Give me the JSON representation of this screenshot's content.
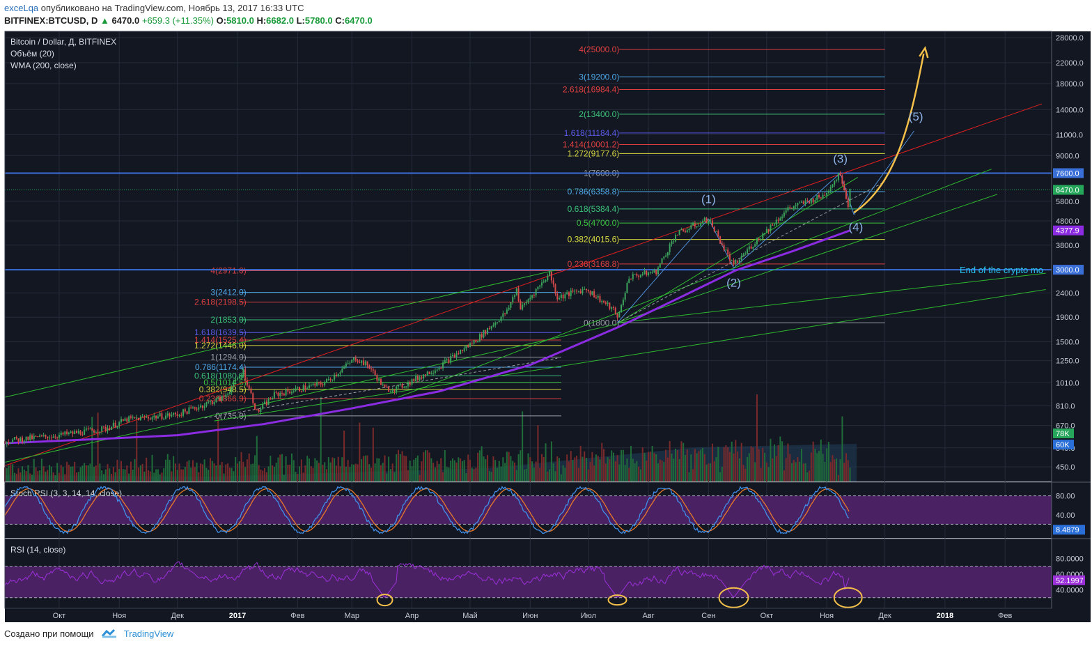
{
  "header": {
    "user": "exceLqa",
    "published": "опубликовано на TradingView.com, Ноябрь 13, 2017 16:33 UTC",
    "symbol": "BITFINEX:BTCUSD, D",
    "price": "6470.0",
    "change": "+659.3 (+11.35%)",
    "o_label": "O:",
    "o": "5810.0",
    "h_label": "H:",
    "h": "6682.0",
    "l_label": "L:",
    "l": "5780.0",
    "c_label": "C:",
    "c": "6470.0"
  },
  "legend": {
    "title": "Bitcoin / Dollar, Д, BITFINEX",
    "volume": "Объём (20)",
    "wma": "WMA (200, close)",
    "stoch": "Stoch RSI (3, 3, 14, 14, close)",
    "rsi": "RSI (14, close)"
  },
  "footer": {
    "made_with": "Создано при помощи",
    "brand": "TradingView"
  },
  "colors": {
    "background": "#131722",
    "grid": "#262b3b",
    "candle_up": "#3ca55c",
    "candle_down": "#d84a4a",
    "wma": "#8b2be2",
    "trend_red": "#e02020",
    "trend_green": "#2eb82e",
    "h_blue": "#3a6fd8",
    "curve_yellow": "#f5c04a",
    "purple_zone": "#4a2163",
    "indicator_line": "#9b30d9",
    "stoch_k": "#3f8fe8",
    "stoch_d": "#e8782a"
  },
  "chart_data": {
    "type": "candlestick",
    "y_scale": "log",
    "ylim": [
      380,
      30000
    ],
    "x_ticks": [
      "Окт",
      "Ноя",
      "Дек",
      "2017",
      "Фев",
      "Мар",
      "Апр",
      "Май",
      "Июн",
      "Июл",
      "Авг",
      "Сен",
      "Окт",
      "Ноя",
      "Дек",
      "2018",
      "Фев"
    ],
    "y_ticks": [
      28000.0,
      22000.0,
      18000.0,
      14000.0,
      11000.0,
      9000.0,
      7600.0,
      6470.0,
      5800.0,
      4800.0,
      4377.9,
      3800.0,
      3000.0,
      2400.0,
      1900.0,
      1500.0,
      1250.0,
      1010.0,
      810.0,
      670.0,
      540.0,
      450.0
    ],
    "price_labels": [
      {
        "text": "7600.0",
        "value": 7600,
        "color": "#3a6fd8"
      },
      {
        "text": "6470.0",
        "value": 6470,
        "color": "#26a65b"
      },
      {
        "text": "4377.9",
        "value": 4377.9,
        "color": "#8b2be2"
      },
      {
        "text": "3000.0",
        "value": 3000,
        "color": "#3a6fd8"
      }
    ],
    "volume_labels": [
      {
        "text": "78K",
        "color": "#26a65b"
      },
      {
        "text": "60K",
        "color": "#2a6fd8"
      }
    ],
    "fib_set_1": [
      {
        "label": "4(2971.0)",
        "value": 2971,
        "color": "#e04040"
      },
      {
        "label": "3(2412.0)",
        "value": 2412,
        "color": "#4ea8e8"
      },
      {
        "label": "2.618(2198.5)",
        "value": 2198.5,
        "color": "#e04040"
      },
      {
        "label": "2(1853.0)",
        "value": 1853,
        "color": "#3cc47c"
      },
      {
        "label": "1.618(1639.5)",
        "value": 1639.5,
        "color": "#5a5ae8"
      },
      {
        "label": "1.414(1525.4)",
        "value": 1525.4,
        "color": "#e04040"
      },
      {
        "label": "1.272(1446.0)",
        "value": 1446,
        "color": "#d8d840"
      },
      {
        "label": "1(1294.0)",
        "value": 1294,
        "color": "#9aa0a6"
      },
      {
        "label": "0.786(1174.4)",
        "value": 1174.4,
        "color": "#4ea8e8"
      },
      {
        "label": "0.618(1080.5)",
        "value": 1080.5,
        "color": "#3cc47c"
      },
      {
        "label": "0.5(1014.5)",
        "value": 1014.5,
        "color": "#3cc440"
      },
      {
        "label": "0.382(948.5)",
        "value": 948.5,
        "color": "#d8d840"
      },
      {
        "label": "0.236(866.9)",
        "value": 866.9,
        "color": "#e04040"
      },
      {
        "label": "0(735.0)",
        "value": 735,
        "color": "#9aa0a6"
      }
    ],
    "fib_set_2": [
      {
        "label": "4(25000.0)",
        "value": 25000,
        "color": "#e04040"
      },
      {
        "label": "3(19200.0)",
        "value": 19200,
        "color": "#4ea8e8"
      },
      {
        "label": "2.618(16984.4)",
        "value": 16984.4,
        "color": "#e04040"
      },
      {
        "label": "2(13400.0)",
        "value": 13400,
        "color": "#3cc47c"
      },
      {
        "label": "1.618(11184.4)",
        "value": 11184.4,
        "color": "#5a5ae8"
      },
      {
        "label": "1.414(10001.2)",
        "value": 10001.2,
        "color": "#e04040"
      },
      {
        "label": "1.272(9177.6)",
        "value": 9177.6,
        "color": "#d8d840"
      },
      {
        "label": "1(7600.0)",
        "value": 7600,
        "color": "#9aa0a6"
      },
      {
        "label": "0.786(6358.8)",
        "value": 6358.8,
        "color": "#4ea8e8"
      },
      {
        "label": "0.618(5384.4)",
        "value": 5384.4,
        "color": "#3cc47c"
      },
      {
        "label": "0.5(4700.0)",
        "value": 4700,
        "color": "#3cc440"
      },
      {
        "label": "0.382(4015.6)",
        "value": 4015.6,
        "color": "#d8d840"
      },
      {
        "label": "0.236(3168.8)",
        "value": 3168.8,
        "color": "#e04040"
      },
      {
        "label": "0(1800.0)",
        "value": 1800,
        "color": "#9aa0a6"
      }
    ],
    "horizontal_lines": [
      {
        "value": 7600,
        "color": "#3a6fd8"
      },
      {
        "value": 3000,
        "color": "#3a6fd8"
      }
    ],
    "annotation_text": "End of the crypto mo",
    "wave_labels": [
      "(1)",
      "(2)",
      "(3)",
      "(4)",
      "(5)"
    ],
    "price_path": [
      [
        "2016-09-01",
        575
      ],
      [
        "2016-10-01",
        610
      ],
      [
        "2016-10-25",
        650
      ],
      [
        "2016-11-05",
        710
      ],
      [
        "2016-12-01",
        745
      ],
      [
        "2016-12-25",
        880
      ],
      [
        "2017-01-04",
        1130
      ],
      [
        "2017-01-11",
        760
      ],
      [
        "2017-01-20",
        900
      ],
      [
        "2017-02-15",
        1010
      ],
      [
        "2017-03-03",
        1280
      ],
      [
        "2017-03-10",
        1180
      ],
      [
        "2017-03-18",
        950
      ],
      [
        "2017-03-25",
        960
      ],
      [
        "2017-04-15",
        1180
      ],
      [
        "2017-05-03",
        1500
      ],
      [
        "2017-05-20",
        2000
      ],
      [
        "2017-05-25",
        2500
      ],
      [
        "2017-05-27",
        2050
      ],
      [
        "2017-06-11",
        2900
      ],
      [
        "2017-06-15",
        2300
      ],
      [
        "2017-06-30",
        2500
      ],
      [
        "2017-07-15",
        2000
      ],
      [
        "2017-07-16",
        1850
      ],
      [
        "2017-07-22",
        2800
      ],
      [
        "2017-08-05",
        2950
      ],
      [
        "2017-08-15",
        4200
      ],
      [
        "2017-09-01",
        4900
      ],
      [
        "2017-09-14",
        3100
      ],
      [
        "2017-09-22",
        3700
      ],
      [
        "2017-10-12",
        5400
      ],
      [
        "2017-10-30",
        6100
      ],
      [
        "2017-11-08",
        7600
      ],
      [
        "2017-11-12",
        5600
      ],
      [
        "2017-11-13",
        6470
      ]
    ],
    "stoch_rsi": {
      "ylim": [
        0,
        100
      ],
      "levels": [
        80,
        20
      ],
      "last": 8.4879,
      "ticks": [
        80.0,
        40.0
      ],
      "last_label": "8.4879"
    },
    "rsi": {
      "ylim": [
        20,
        100
      ],
      "levels": [
        70,
        30
      ],
      "last": 52.1997,
      "ticks": [
        80.0,
        60.0,
        40.0
      ],
      "last_label": "52.1997"
    }
  }
}
